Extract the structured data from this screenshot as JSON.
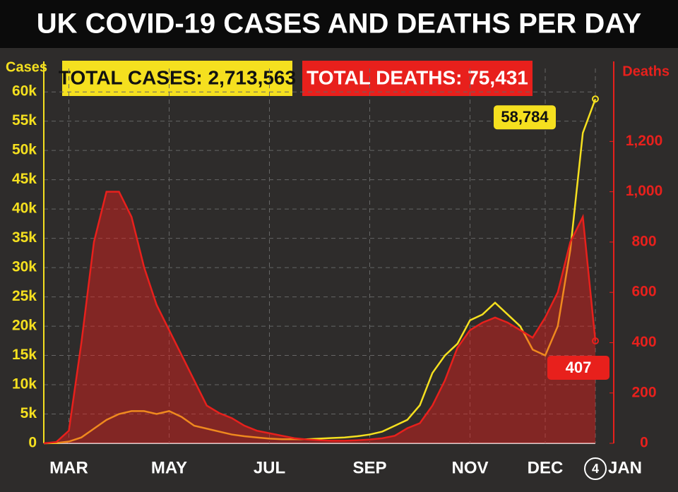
{
  "chart_data": {
    "type": "line",
    "title": "UK COVID-19 CASES AND DEATHS PER DAY",
    "annotations": [
      "TOTAL CASES: 2,713,563",
      "TOTAL DEATHS: 75,431"
    ],
    "y_label": "Cases",
    "y2_label": "Deaths",
    "end_day_label": "4",
    "categories": [
      null,
      null,
      "MAR",
      null,
      null,
      null,
      null,
      null,
      null,
      null,
      "MAY",
      null,
      null,
      null,
      null,
      null,
      null,
      null,
      "JUL",
      null,
      null,
      null,
      null,
      null,
      null,
      null,
      "SEP",
      null,
      null,
      null,
      null,
      null,
      null,
      null,
      "NOV",
      null,
      null,
      null,
      null,
      null,
      "DEC",
      null,
      null,
      null,
      "JAN"
    ],
    "series": [
      {
        "color": "#f5e01f",
        "axis": "y",
        "values": [
          0,
          50,
          300,
          1000,
          2500,
          4000,
          5000,
          5500,
          5500,
          5000,
          5500,
          4500,
          3000,
          2500,
          2000,
          1500,
          1200,
          1000,
          800,
          700,
          700,
          700,
          800,
          900,
          1000,
          1200,
          1500,
          2000,
          3000,
          4000,
          6500,
          12000,
          15000,
          17000,
          21000,
          22000,
          24000,
          22000,
          20000,
          16000,
          15000,
          20000,
          33000,
          53000,
          58784
        ],
        "value_labels": [
          null,
          null,
          null,
          null,
          null,
          null,
          null,
          null,
          null,
          null,
          null,
          null,
          null,
          null,
          null,
          null,
          null,
          null,
          null,
          null,
          null,
          null,
          null,
          null,
          null,
          null,
          null,
          null,
          null,
          null,
          null,
          null,
          null,
          null,
          null,
          null,
          null,
          null,
          null,
          null,
          null,
          null,
          null,
          null,
          "58,784"
        ]
      },
      {
        "color": "#e8201c",
        "axis": "y2",
        "values": [
          0,
          5,
          50,
          400,
          800,
          1000,
          1000,
          900,
          700,
          550,
          450,
          350,
          250,
          150,
          120,
          100,
          70,
          50,
          40,
          30,
          20,
          15,
          12,
          10,
          10,
          12,
          15,
          20,
          30,
          60,
          80,
          150,
          250,
          380,
          450,
          480,
          500,
          480,
          450,
          420,
          500,
          600,
          800,
          900,
          407
        ],
        "value_labels": [
          null,
          null,
          null,
          null,
          null,
          null,
          null,
          null,
          null,
          null,
          null,
          null,
          null,
          null,
          null,
          null,
          null,
          null,
          null,
          null,
          null,
          null,
          null,
          null,
          null,
          null,
          null,
          null,
          null,
          null,
          null,
          null,
          null,
          null,
          null,
          null,
          null,
          null,
          null,
          null,
          null,
          null,
          null,
          null,
          "407"
        ]
      }
    ],
    "ylim": [
      0,
      64000
    ],
    "yticks": [
      0,
      {
        "value": 5000,
        "label": "5k"
      },
      {
        "value": 10000,
        "label": "10k"
      },
      {
        "value": 15000,
        "label": "15k"
      },
      {
        "value": 20000,
        "label": "20k"
      },
      {
        "value": 25000,
        "label": "25k"
      },
      {
        "value": 30000,
        "label": "30k"
      },
      {
        "value": 35000,
        "label": "35k"
      },
      {
        "value": 40000,
        "label": "40k"
      },
      {
        "value": 45000,
        "label": "45k"
      },
      {
        "value": 50000,
        "label": "50k"
      },
      {
        "value": 55000,
        "label": "55k"
      },
      {
        "value": 60000,
        "label": "60k"
      }
    ],
    "y2lim": [
      0,
      1490
    ],
    "y2ticks": [
      0,
      200,
      400,
      600,
      800,
      {
        "value": 1000,
        "label": "1,000"
      },
      {
        "value": 1200,
        "label": "1,200"
      }
    ],
    "grid": true
  }
}
